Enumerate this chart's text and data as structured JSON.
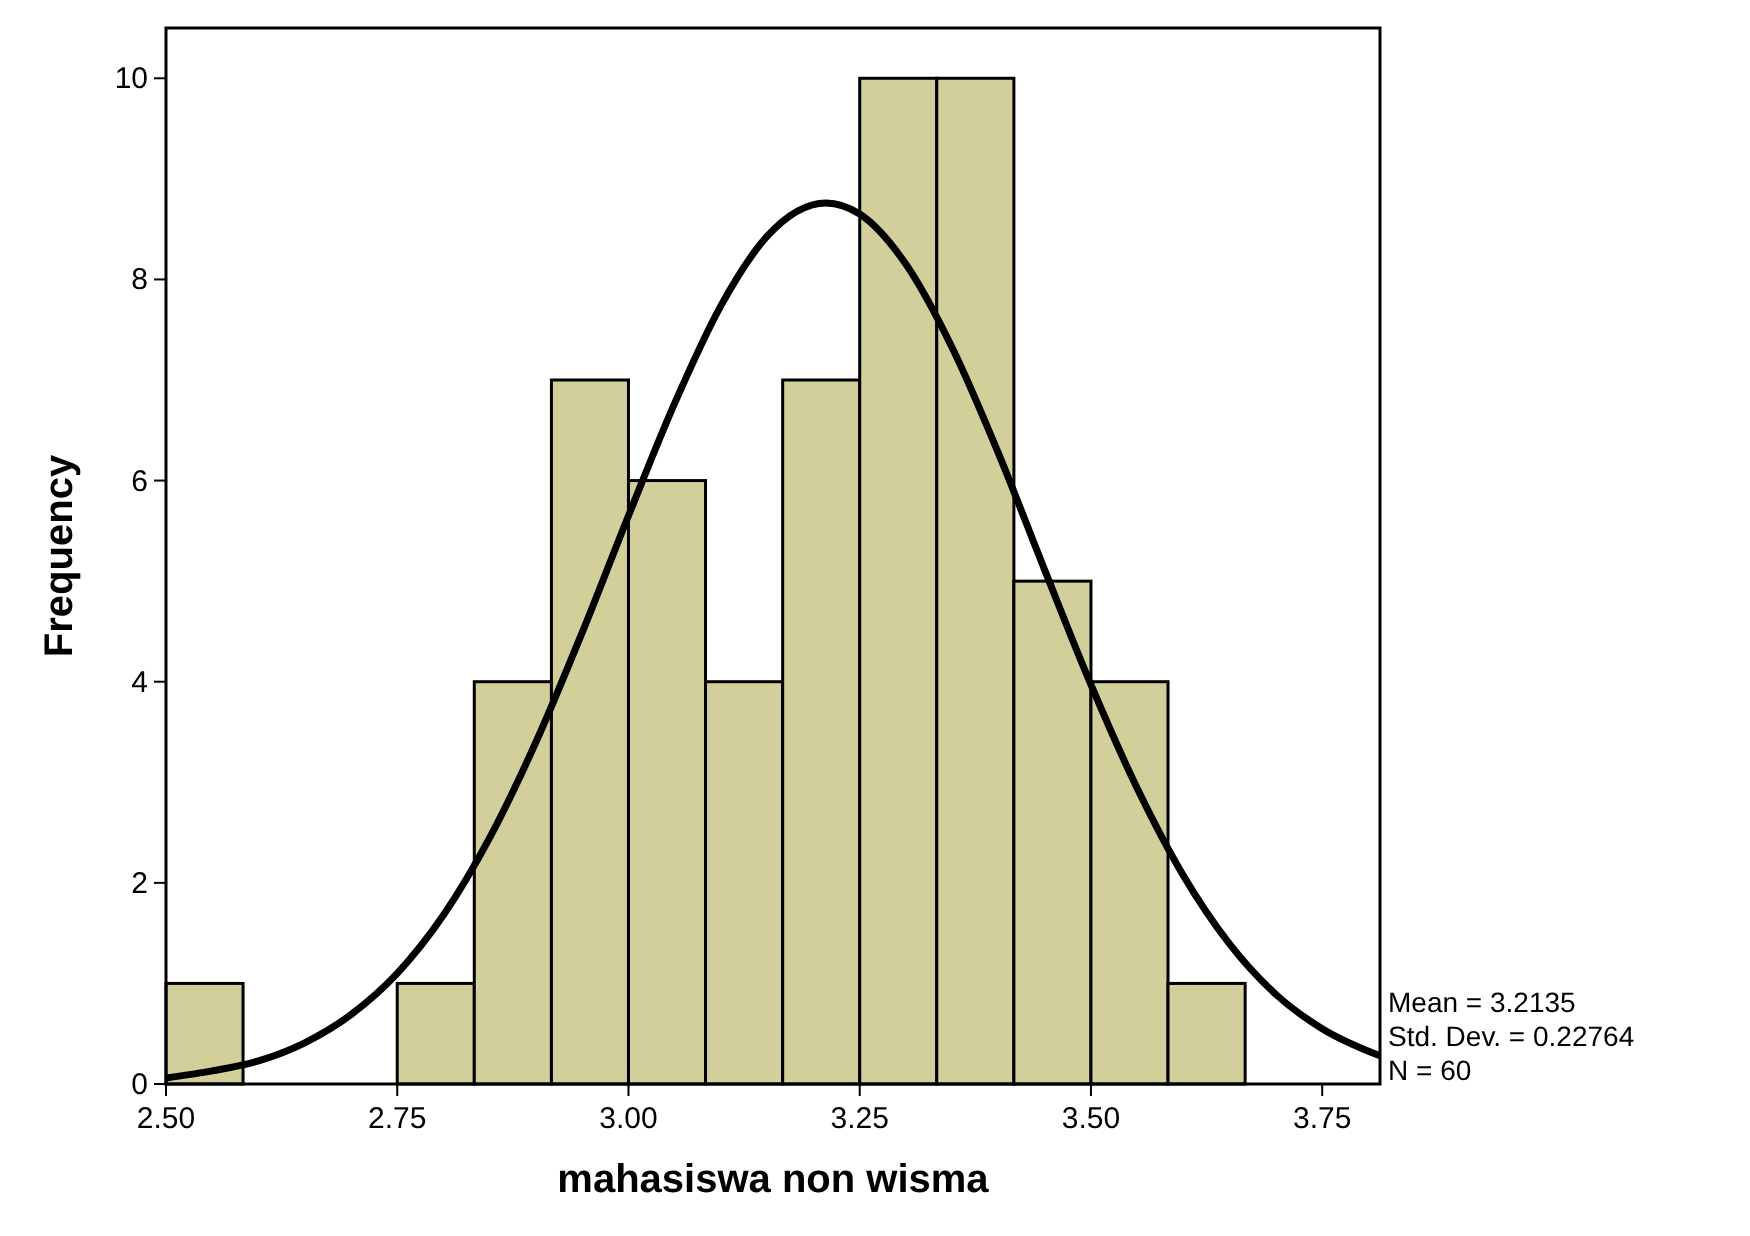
{
  "chart_data": {
    "type": "histogram",
    "xlabel": "mahasiswa non wisma",
    "ylabel": "Frequency",
    "bins": [
      2.5,
      2.5833,
      2.6667,
      2.75,
      2.8333,
      2.9167,
      3.0,
      3.0833,
      3.1667,
      3.25,
      3.3333,
      3.4167,
      3.5,
      3.5833,
      3.6667
    ],
    "values": [
      1,
      0,
      0,
      1,
      4,
      7,
      6,
      4,
      7,
      10,
      10,
      5,
      4,
      1
    ],
    "color": "#d3cf9b",
    "series": [
      {
        "type": "line",
        "color": "#000000",
        "x": [
          2.5,
          2.55,
          2.6,
          2.65,
          2.7,
          2.75,
          2.8,
          2.85,
          2.9,
          2.95,
          3.0,
          3.05,
          3.1,
          3.15,
          3.2135,
          3.25,
          3.3,
          3.35,
          3.4,
          3.45,
          3.5,
          3.55,
          3.6,
          3.65,
          3.7,
          3.75,
          3.8125
        ],
        "values": [
          0.06,
          0.13,
          0.23,
          0.41,
          0.69,
          1.1,
          1.68,
          2.45,
          3.4,
          4.49,
          5.65,
          6.77,
          7.74,
          8.43,
          8.76,
          8.65,
          8.15,
          7.32,
          6.27,
          5.11,
          3.97,
          2.94,
          2.07,
          1.39,
          0.89,
          0.55,
          0.28
        ]
      }
    ],
    "xlim": [
      2.5,
      3.8125
    ],
    "ylim": [
      0,
      10.5
    ],
    "xticks": [
      {
        "value": 2.5,
        "label": "2.50"
      },
      {
        "value": 2.75,
        "label": "2.75"
      },
      {
        "value": 3,
        "label": "3.00"
      },
      {
        "value": 3.25,
        "label": "3.25"
      },
      {
        "value": 3.5,
        "label": "3.50"
      },
      {
        "value": 3.75,
        "label": "3.75"
      }
    ],
    "yticks": [
      0,
      2,
      4,
      6,
      8,
      10
    ],
    "grid": false,
    "marker": "none",
    "line_style": "solid",
    "annotations": [
      "Mean = 3.2135",
      "Std. Dev. = 0.22764",
      "N = 60"
    ]
  }
}
